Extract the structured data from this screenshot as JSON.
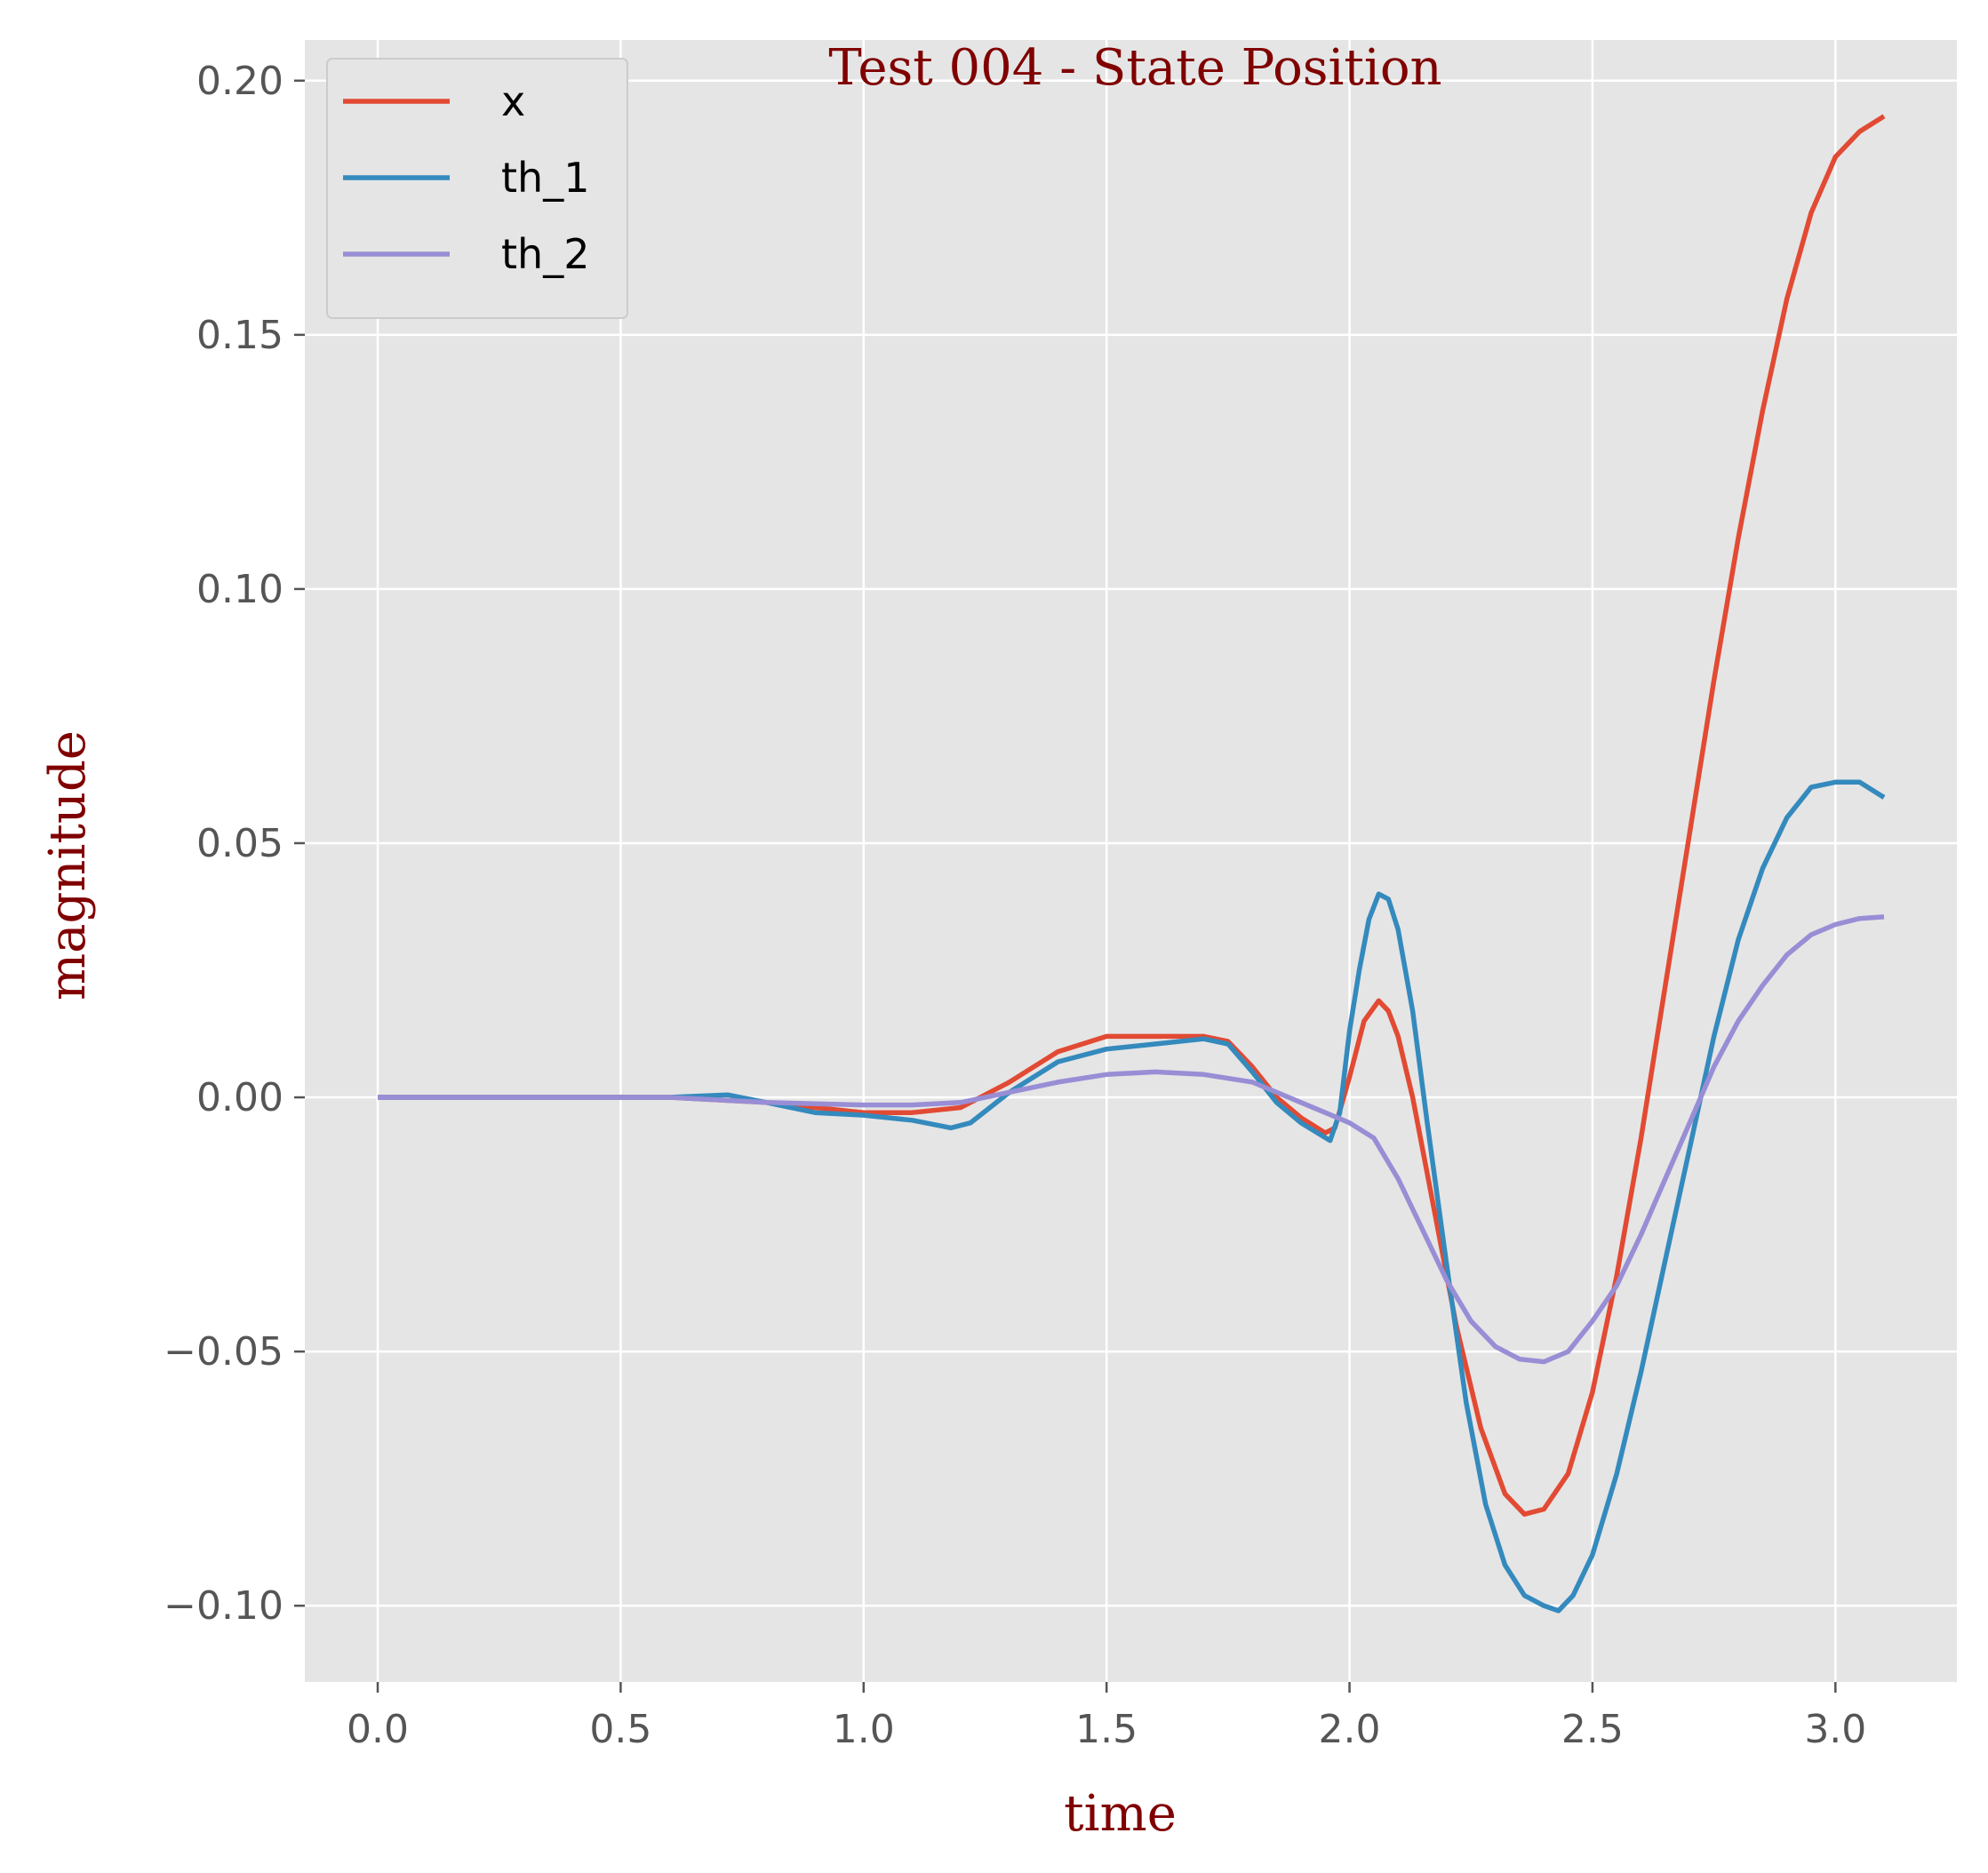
{
  "chart_data": {
    "type": "line",
    "title": "Test 004 - State Position",
    "xlabel": "time",
    "ylabel": "magnitude",
    "xlim": [
      -0.15,
      3.25
    ],
    "ylim": [
      -0.115,
      0.208
    ],
    "x_ticks": [
      0.0,
      0.5,
      1.0,
      1.5,
      2.0,
      2.5,
      3.0
    ],
    "x_tick_labels": [
      "0.0",
      "0.5",
      "1.0",
      "1.5",
      "2.0",
      "2.5",
      "3.0"
    ],
    "y_ticks": [
      -0.1,
      -0.05,
      0.0,
      0.05,
      0.1,
      0.15,
      0.2
    ],
    "y_tick_labels": [
      "−0.10",
      "−0.05",
      "0.00",
      "0.05",
      "0.10",
      "0.15",
      "0.20"
    ],
    "grid": true,
    "legend_position": "upper-left",
    "background_color": "#e5e5e5",
    "series": [
      {
        "name": "x",
        "color": "#e24a33",
        "points": [
          [
            0.0,
            0.0
          ],
          [
            0.3,
            0.0
          ],
          [
            0.6,
            0.0
          ],
          [
            0.8,
            -0.001
          ],
          [
            1.0,
            -0.003
          ],
          [
            1.1,
            -0.003
          ],
          [
            1.2,
            -0.002
          ],
          [
            1.3,
            0.003
          ],
          [
            1.4,
            0.009
          ],
          [
            1.5,
            0.012
          ],
          [
            1.6,
            0.012
          ],
          [
            1.7,
            0.012
          ],
          [
            1.75,
            0.011
          ],
          [
            1.8,
            0.006
          ],
          [
            1.85,
            0.0
          ],
          [
            1.9,
            -0.004
          ],
          [
            1.95,
            -0.007
          ],
          [
            1.97,
            -0.006
          ],
          [
            2.0,
            0.004
          ],
          [
            2.03,
            0.015
          ],
          [
            2.06,
            0.019
          ],
          [
            2.08,
            0.017
          ],
          [
            2.1,
            0.012
          ],
          [
            2.13,
            0.0
          ],
          [
            2.17,
            -0.02
          ],
          [
            2.22,
            -0.045
          ],
          [
            2.27,
            -0.065
          ],
          [
            2.32,
            -0.078
          ],
          [
            2.36,
            -0.082
          ],
          [
            2.4,
            -0.081
          ],
          [
            2.45,
            -0.074
          ],
          [
            2.5,
            -0.058
          ],
          [
            2.55,
            -0.035
          ],
          [
            2.6,
            -0.008
          ],
          [
            2.65,
            0.022
          ],
          [
            2.7,
            0.052
          ],
          [
            2.75,
            0.082
          ],
          [
            2.8,
            0.11
          ],
          [
            2.85,
            0.135
          ],
          [
            2.9,
            0.157
          ],
          [
            2.95,
            0.174
          ],
          [
            3.0,
            0.185
          ],
          [
            3.05,
            0.19
          ],
          [
            3.1,
            0.193
          ]
        ]
      },
      {
        "name": "th_1",
        "color": "#348abd",
        "points": [
          [
            0.0,
            0.0
          ],
          [
            0.3,
            0.0
          ],
          [
            0.6,
            0.0
          ],
          [
            0.72,
            0.0005
          ],
          [
            0.8,
            -0.001
          ],
          [
            0.9,
            -0.003
          ],
          [
            1.0,
            -0.0035
          ],
          [
            1.1,
            -0.0045
          ],
          [
            1.18,
            -0.006
          ],
          [
            1.22,
            -0.005
          ],
          [
            1.3,
            0.001
          ],
          [
            1.4,
            0.007
          ],
          [
            1.5,
            0.0095
          ],
          [
            1.6,
            0.0105
          ],
          [
            1.7,
            0.0115
          ],
          [
            1.75,
            0.0105
          ],
          [
            1.8,
            0.005
          ],
          [
            1.85,
            -0.001
          ],
          [
            1.9,
            -0.005
          ],
          [
            1.96,
            -0.0085
          ],
          [
            1.98,
            -0.003
          ],
          [
            2.0,
            0.013
          ],
          [
            2.02,
            0.025
          ],
          [
            2.04,
            0.035
          ],
          [
            2.06,
            0.04
          ],
          [
            2.08,
            0.039
          ],
          [
            2.1,
            0.033
          ],
          [
            2.13,
            0.017
          ],
          [
            2.16,
            -0.005
          ],
          [
            2.2,
            -0.033
          ],
          [
            2.24,
            -0.06
          ],
          [
            2.28,
            -0.08
          ],
          [
            2.32,
            -0.092
          ],
          [
            2.36,
            -0.098
          ],
          [
            2.4,
            -0.1
          ],
          [
            2.43,
            -0.101
          ],
          [
            2.46,
            -0.098
          ],
          [
            2.5,
            -0.09
          ],
          [
            2.55,
            -0.074
          ],
          [
            2.6,
            -0.054
          ],
          [
            2.65,
            -0.032
          ],
          [
            2.7,
            -0.01
          ],
          [
            2.75,
            0.012
          ],
          [
            2.8,
            0.031
          ],
          [
            2.85,
            0.045
          ],
          [
            2.9,
            0.055
          ],
          [
            2.95,
            0.061
          ],
          [
            3.0,
            0.062
          ],
          [
            3.05,
            0.062
          ],
          [
            3.1,
            0.059
          ]
        ]
      },
      {
        "name": "th_2",
        "color": "#988ed5",
        "points": [
          [
            0.0,
            0.0
          ],
          [
            0.3,
            0.0
          ],
          [
            0.6,
            0.0
          ],
          [
            0.8,
            -0.001
          ],
          [
            1.0,
            -0.0015
          ],
          [
            1.1,
            -0.0015
          ],
          [
            1.2,
            -0.001
          ],
          [
            1.3,
            0.001
          ],
          [
            1.4,
            0.003
          ],
          [
            1.5,
            0.0045
          ],
          [
            1.6,
            0.005
          ],
          [
            1.7,
            0.0045
          ],
          [
            1.8,
            0.003
          ],
          [
            1.9,
            -0.001
          ],
          [
            1.95,
            -0.003
          ],
          [
            2.0,
            -0.005
          ],
          [
            2.05,
            -0.008
          ],
          [
            2.1,
            -0.016
          ],
          [
            2.15,
            -0.026
          ],
          [
            2.2,
            -0.036
          ],
          [
            2.25,
            -0.044
          ],
          [
            2.3,
            -0.049
          ],
          [
            2.35,
            -0.0515
          ],
          [
            2.4,
            -0.052
          ],
          [
            2.45,
            -0.05
          ],
          [
            2.5,
            -0.044
          ],
          [
            2.55,
            -0.037
          ],
          [
            2.6,
            -0.027
          ],
          [
            2.65,
            -0.016
          ],
          [
            2.7,
            -0.005
          ],
          [
            2.75,
            0.006
          ],
          [
            2.8,
            0.015
          ],
          [
            2.85,
            0.022
          ],
          [
            2.9,
            0.028
          ],
          [
            2.95,
            0.032
          ],
          [
            3.0,
            0.034
          ],
          [
            3.05,
            0.0352
          ],
          [
            3.1,
            0.0355
          ]
        ]
      }
    ]
  }
}
